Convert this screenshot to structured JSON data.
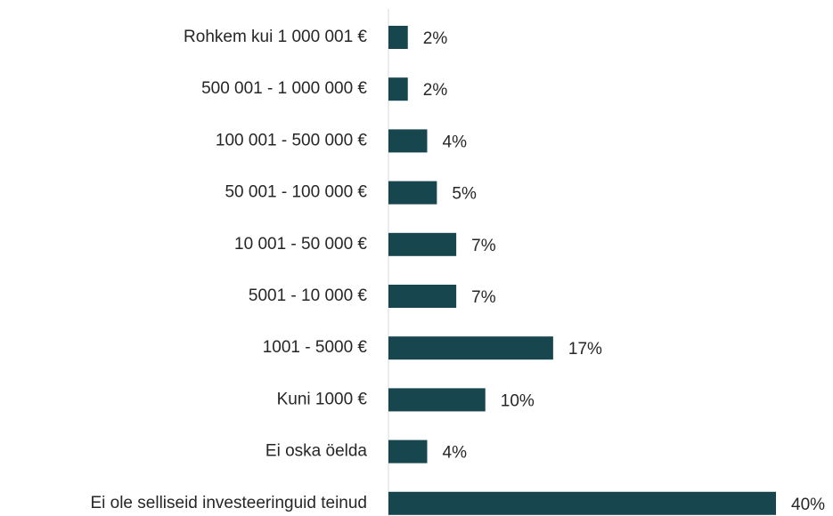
{
  "chart_data": {
    "type": "bar",
    "orientation": "horizontal",
    "categories": [
      "Rohkem kui 1 000 001 €",
      "500 001 - 1 000 000 €",
      "100 001 - 500 000 €",
      "50 001 - 100 000 €",
      "10 001 - 50 000 €",
      "5001 - 10 000 €",
      "1001 - 5000 €",
      "Kuni 1000 €",
      "Ei oska öelda",
      "Ei ole selliseid investeeringuid teinud"
    ],
    "values": [
      2,
      2,
      4,
      5,
      7,
      7,
      17,
      10,
      4,
      40
    ],
    "value_labels": [
      "2%",
      "2%",
      "4%",
      "5%",
      "7%",
      "7%",
      "17%",
      "10%",
      "4%",
      "40%"
    ],
    "color": "#17464f"
  }
}
